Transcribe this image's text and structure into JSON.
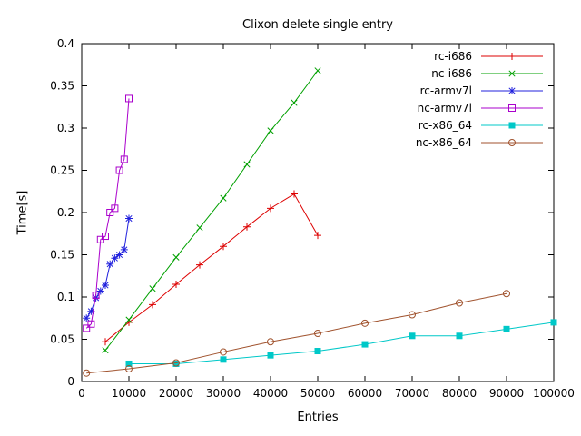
{
  "chart_data": {
    "type": "line",
    "title": "Clixon delete single entry",
    "xlabel": "Entries",
    "ylabel": "Time[s]",
    "xlim": [
      0,
      100000
    ],
    "ylim": [
      0,
      0.4
    ],
    "grid": false,
    "legend_position": "top-right-inside",
    "xticks": {
      "values": [
        0,
        10000,
        20000,
        30000,
        40000,
        50000,
        60000,
        70000,
        80000,
        90000,
        100000
      ],
      "labels": [
        "0",
        "10000",
        "20000",
        "30000",
        "40000",
        "50000",
        "60000",
        "70000",
        "80000",
        "90000",
        "100000"
      ]
    },
    "yticks": {
      "values": [
        0,
        0.05,
        0.1,
        0.15,
        0.2,
        0.25,
        0.3,
        0.35,
        0.4
      ],
      "labels": [
        "0",
        "0.05",
        "0.1",
        "0.15",
        "0.2",
        "0.25",
        "0.3",
        "0.35",
        "0.4"
      ]
    },
    "series": [
      {
        "name": "rc-i686",
        "color": "#dd0000",
        "marker": "plus",
        "points": [
          [
            5000,
            0.047
          ],
          [
            10000,
            0.07
          ],
          [
            15000,
            0.091
          ],
          [
            20000,
            0.115
          ],
          [
            25000,
            0.138
          ],
          [
            30000,
            0.16
          ],
          [
            35000,
            0.183
          ],
          [
            40000,
            0.205
          ],
          [
            45000,
            0.222
          ],
          [
            50000,
            0.173
          ]
        ]
      },
      {
        "name": "nc-i686",
        "color": "#00a000",
        "marker": "cross",
        "points": [
          [
            5000,
            0.037
          ],
          [
            10000,
            0.073
          ],
          [
            15000,
            0.11
          ],
          [
            20000,
            0.147
          ],
          [
            25000,
            0.182
          ],
          [
            30000,
            0.217
          ],
          [
            35000,
            0.257
          ],
          [
            40000,
            0.297
          ],
          [
            45000,
            0.33
          ],
          [
            50000,
            0.368
          ]
        ]
      },
      {
        "name": "rc-armv7l",
        "color": "#2020dd",
        "marker": "asterisk",
        "points": [
          [
            1000,
            0.075
          ],
          [
            2000,
            0.083
          ],
          [
            3000,
            0.099
          ],
          [
            4000,
            0.107
          ],
          [
            5000,
            0.114
          ],
          [
            6000,
            0.139
          ],
          [
            7000,
            0.146
          ],
          [
            8000,
            0.15
          ],
          [
            9000,
            0.156
          ],
          [
            10000,
            0.193
          ]
        ]
      },
      {
        "name": "nc-armv7l",
        "color": "#aa00cc",
        "marker": "square-open",
        "points": [
          [
            1000,
            0.063
          ],
          [
            2000,
            0.068
          ],
          [
            3000,
            0.102
          ],
          [
            4000,
            0.168
          ],
          [
            5000,
            0.172
          ],
          [
            6000,
            0.2
          ],
          [
            7000,
            0.205
          ],
          [
            8000,
            0.25
          ],
          [
            9000,
            0.263
          ],
          [
            10000,
            0.335
          ]
        ]
      },
      {
        "name": "rc-x86_64",
        "color": "#00c8c8",
        "marker": "square-filled",
        "points": [
          [
            10000,
            0.021
          ],
          [
            20000,
            0.021
          ],
          [
            30000,
            0.026
          ],
          [
            40000,
            0.031
          ],
          [
            50000,
            0.036
          ],
          [
            60000,
            0.044
          ],
          [
            70000,
            0.054
          ],
          [
            80000,
            0.054
          ],
          [
            90000,
            0.062
          ],
          [
            100000,
            0.07
          ]
        ]
      },
      {
        "name": "nc-x86_64",
        "color": "#a0522d",
        "marker": "circle-open",
        "points": [
          [
            1000,
            0.01
          ],
          [
            10000,
            0.015
          ],
          [
            20000,
            0.022
          ],
          [
            30000,
            0.035
          ],
          [
            40000,
            0.047
          ],
          [
            50000,
            0.057
          ],
          [
            60000,
            0.069
          ],
          [
            70000,
            0.079
          ],
          [
            80000,
            0.093
          ],
          [
            90000,
            0.104
          ]
        ]
      }
    ]
  }
}
